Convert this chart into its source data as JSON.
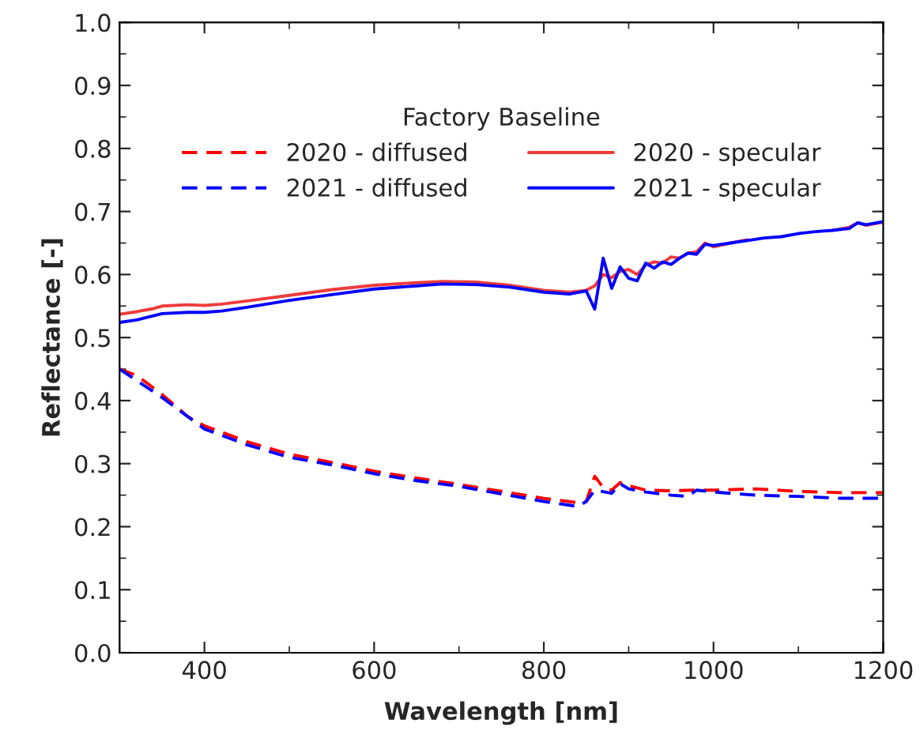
{
  "chart_data": {
    "type": "line",
    "xlabel": "Wavelength [nm]",
    "ylabel": "Reflectance [-]",
    "legend_title": "Factory Baseline",
    "legend": "top",
    "grid": false,
    "marker": "none",
    "xlim": [
      300,
      1200
    ],
    "xticks": [
      400,
      600,
      800,
      1000,
      1200
    ],
    "ylim": [
      0,
      1
    ],
    "yticks": [
      {
        "value": 0,
        "label": "0.0"
      },
      {
        "value": 0.1,
        "label": "0.1"
      },
      {
        "value": 0.2,
        "label": "0.2"
      },
      {
        "value": 0.3,
        "label": "0.3"
      },
      {
        "value": 0.4,
        "label": "0.4"
      },
      {
        "value": 0.5,
        "label": "0.5"
      },
      {
        "value": 0.6,
        "label": "0.6"
      },
      {
        "value": 0.7,
        "label": "0.7"
      },
      {
        "value": 0.8,
        "label": "0.8"
      },
      {
        "value": 0.9,
        "label": "0.9"
      },
      {
        "value": 1,
        "label": "1.0"
      }
    ],
    "series": [
      {
        "name": "2020 - diffused",
        "color": "#ff0000",
        "line_style": "dashed",
        "x": [
          300,
          320,
          350,
          380,
          400,
          450,
          500,
          550,
          600,
          650,
          700,
          750,
          800,
          840,
          850,
          860,
          870,
          880,
          890,
          900,
          920,
          950,
          980,
          1000,
          1050,
          1100,
          1150,
          1200
        ],
        "values": [
          0.45,
          0.44,
          0.41,
          0.375,
          0.36,
          0.335,
          0.315,
          0.302,
          0.288,
          0.277,
          0.267,
          0.256,
          0.245,
          0.238,
          0.24,
          0.28,
          0.262,
          0.258,
          0.27,
          0.265,
          0.258,
          0.257,
          0.258,
          0.258,
          0.26,
          0.256,
          0.254,
          0.254
        ]
      },
      {
        "name": "2021 - diffused",
        "color": "#0000ff",
        "line_style": "dashed",
        "x": [
          300,
          320,
          350,
          380,
          400,
          450,
          500,
          550,
          600,
          650,
          700,
          750,
          800,
          840,
          850,
          860,
          880,
          890,
          900,
          920,
          950,
          970,
          980,
          1000,
          1050,
          1100,
          1150,
          1200
        ],
        "values": [
          0.45,
          0.432,
          0.405,
          0.375,
          0.355,
          0.33,
          0.31,
          0.298,
          0.284,
          0.273,
          0.264,
          0.252,
          0.24,
          0.232,
          0.24,
          0.258,
          0.253,
          0.268,
          0.26,
          0.255,
          0.25,
          0.248,
          0.258,
          0.255,
          0.25,
          0.248,
          0.245,
          0.245
        ]
      },
      {
        "name": "2020 - specular",
        "color": "#ee3b3b",
        "line_style": "solid",
        "x": [
          300,
          320,
          340,
          350,
          380,
          400,
          420,
          450,
          500,
          550,
          600,
          650,
          680,
          720,
          760,
          800,
          830,
          850,
          860,
          870,
          880,
          890,
          900,
          910,
          920,
          930,
          940,
          950,
          960,
          970,
          980,
          990,
          1000,
          1020,
          1040,
          1060,
          1080,
          1100,
          1120,
          1140,
          1160,
          1170,
          1180,
          1200
        ],
        "values": [
          0.537,
          0.541,
          0.546,
          0.55,
          0.552,
          0.551,
          0.553,
          0.558,
          0.567,
          0.576,
          0.583,
          0.587,
          0.589,
          0.588,
          0.583,
          0.575,
          0.572,
          0.575,
          0.582,
          0.6,
          0.595,
          0.605,
          0.608,
          0.6,
          0.615,
          0.62,
          0.618,
          0.628,
          0.626,
          0.634,
          0.636,
          0.65,
          0.644,
          0.65,
          0.655,
          null,
          null,
          null,
          null,
          0.67,
          0.675,
          0.682,
          0.678,
          0.683
        ]
      },
      {
        "name": "2021 - specular",
        "color": "#0000ff",
        "line_style": "solid",
        "x": [
          300,
          320,
          350,
          380,
          400,
          420,
          450,
          500,
          550,
          600,
          650,
          680,
          720,
          760,
          800,
          830,
          850,
          860,
          870,
          880,
          890,
          900,
          910,
          920,
          930,
          940,
          950,
          960,
          970,
          980,
          990,
          1000,
          1020,
          1040,
          1060,
          1080,
          1100,
          1120,
          1140,
          1160,
          1170,
          1180,
          1200
        ],
        "values": [
          0.524,
          0.528,
          0.538,
          0.54,
          0.54,
          0.542,
          0.548,
          0.559,
          0.568,
          0.577,
          0.582,
          0.585,
          0.584,
          0.58,
          0.572,
          0.569,
          0.574,
          0.545,
          0.626,
          0.578,
          0.612,
          0.594,
          0.59,
          0.618,
          0.61,
          0.62,
          0.616,
          0.626,
          0.634,
          0.632,
          0.648,
          0.646,
          0.65,
          0.654,
          0.658,
          0.66,
          0.665,
          0.668,
          0.67,
          0.673,
          0.682,
          0.679,
          0.684
        ]
      }
    ]
  }
}
